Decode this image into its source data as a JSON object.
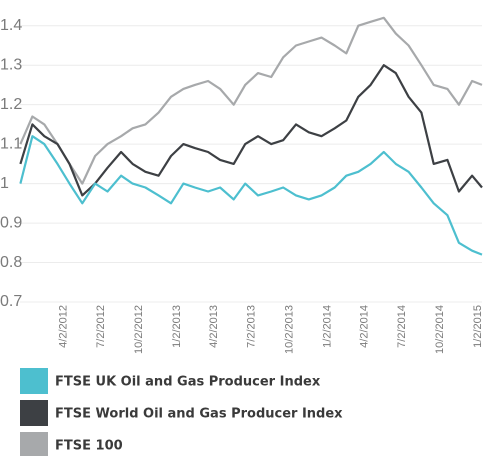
{
  "chart_data": {
    "type": "line",
    "x": [
      "1/3/2012",
      "2/1/2012",
      "3/1/2012",
      "4/2/2012",
      "5/1/2012",
      "6/1/2012",
      "7/2/2012",
      "8/1/2012",
      "9/3/2012",
      "10/1/2012",
      "11/1/2012",
      "12/3/2012",
      "1/2/2013",
      "2/1/2013",
      "3/1/2013",
      "4/2/2013",
      "5/1/2013",
      "6/3/2013",
      "7/1/2013",
      "8/1/2013",
      "9/2/2013",
      "10/1/2013",
      "11/1/2013",
      "12/2/2013",
      "1/2/2014",
      "2/3/2014",
      "3/3/2014",
      "4/1/2014",
      "5/1/2014",
      "6/2/2014",
      "7/1/2014",
      "8/1/2014",
      "9/1/2014",
      "10/1/2014",
      "11/3/2014",
      "12/1/2014",
      "1/2/2015",
      "1/26/2015"
    ],
    "series": [
      {
        "name": "FTSE UK Oil and Gas Producer Index",
        "color": "#4dbfcf",
        "values": [
          1.0,
          1.12,
          1.1,
          1.05,
          1.0,
          0.95,
          1.0,
          0.98,
          1.02,
          1.0,
          0.99,
          0.97,
          0.95,
          1.0,
          0.99,
          0.98,
          0.99,
          0.96,
          1.0,
          0.97,
          0.98,
          0.99,
          0.97,
          0.96,
          0.97,
          0.99,
          1.02,
          1.03,
          1.05,
          1.08,
          1.05,
          1.03,
          0.99,
          0.95,
          0.92,
          0.85,
          0.83,
          0.82
        ]
      },
      {
        "name": "FTSE World Oil and Gas Producer Index",
        "color": "#3d4044",
        "values": [
          1.05,
          1.15,
          1.12,
          1.1,
          1.05,
          0.97,
          1.0,
          1.04,
          1.08,
          1.05,
          1.03,
          1.02,
          1.07,
          1.1,
          1.09,
          1.08,
          1.06,
          1.05,
          1.1,
          1.12,
          1.1,
          1.11,
          1.15,
          1.13,
          1.12,
          1.14,
          1.16,
          1.22,
          1.25,
          1.3,
          1.28,
          1.22,
          1.18,
          1.05,
          1.06,
          0.98,
          1.02,
          0.99
        ]
      },
      {
        "name": "FTSE 100",
        "color": "#a7a9ab",
        "values": [
          1.1,
          1.17,
          1.15,
          1.1,
          1.05,
          1.0,
          1.07,
          1.1,
          1.12,
          1.14,
          1.15,
          1.18,
          1.22,
          1.24,
          1.25,
          1.26,
          1.24,
          1.2,
          1.25,
          1.28,
          1.27,
          1.32,
          1.35,
          1.36,
          1.37,
          1.35,
          1.33,
          1.4,
          1.41,
          1.42,
          1.38,
          1.35,
          1.3,
          1.25,
          1.24,
          1.2,
          1.26,
          1.25
        ]
      }
    ],
    "xlim": [
      "1/2/2012",
      "1/26/2015"
    ],
    "xticks": [
      "4/2/2012",
      "7/2/2012",
      "10/2/2012",
      "1/2/2013",
      "4/2/2013",
      "7/2/2013",
      "10/2/2013",
      "1/2/2014",
      "4/2/2014",
      "7/2/2014",
      "10/2/2014",
      "1/2/2015"
    ],
    "ylim": [
      0.7,
      1.45
    ],
    "yticks": [
      0.7,
      0.8,
      0.9,
      1,
      1.1,
      1.2,
      1.3,
      1.4
    ],
    "grid": true
  }
}
